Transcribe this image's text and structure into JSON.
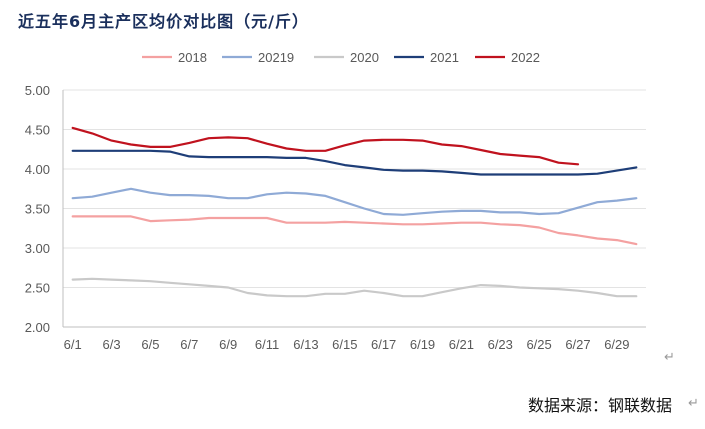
{
  "page": {
    "title": "近五年6月主产区均价对比图（元/斤）",
    "source": "数据来源：钢联数据",
    "return_mark": "↵"
  },
  "chart_data": {
    "type": "line",
    "title": "近五年6月主产区均价对比图（元/斤）",
    "xlabel": "",
    "ylabel": "",
    "ylim": [
      2.0,
      5.0
    ],
    "yticks": [
      2.0,
      2.5,
      3.0,
      3.5,
      4.0,
      4.5,
      5.0
    ],
    "ytick_labels": [
      "2.00",
      "2.50",
      "3.00",
      "3.50",
      "4.00",
      "4.50",
      "5.00"
    ],
    "x": [
      1,
      2,
      3,
      4,
      5,
      6,
      7,
      8,
      9,
      10,
      11,
      12,
      13,
      14,
      15,
      16,
      17,
      18,
      19,
      20,
      21,
      22,
      23,
      24,
      25,
      26,
      27,
      28,
      29,
      30
    ],
    "xtick_values": [
      1,
      3,
      5,
      7,
      9,
      11,
      13,
      15,
      17,
      19,
      21,
      23,
      25,
      27,
      29
    ],
    "xtick_labels": [
      "6/1",
      "6/3",
      "6/5",
      "6/7",
      "6/9",
      "6/11",
      "6/13",
      "6/15",
      "6/17",
      "6/19",
      "6/21",
      "6/23",
      "6/25",
      "6/27",
      "6/29"
    ],
    "grid": "horizontal",
    "legend_position": "top",
    "series": [
      {
        "name": "2018",
        "color": "#f4a1a1",
        "values": [
          3.4,
          3.4,
          3.4,
          3.4,
          3.34,
          3.35,
          3.36,
          3.38,
          3.38,
          3.38,
          3.38,
          3.32,
          3.32,
          3.32,
          3.33,
          3.32,
          3.31,
          3.3,
          3.3,
          3.31,
          3.32,
          3.32,
          3.3,
          3.29,
          3.26,
          3.19,
          3.16,
          3.12,
          3.1,
          3.05
        ]
      },
      {
        "name": "20219",
        "color": "#8faad6",
        "values": [
          3.63,
          3.65,
          3.7,
          3.75,
          3.7,
          3.67,
          3.67,
          3.66,
          3.63,
          3.63,
          3.68,
          3.7,
          3.69,
          3.66,
          3.58,
          3.5,
          3.43,
          3.42,
          3.44,
          3.46,
          3.47,
          3.47,
          3.45,
          3.45,
          3.43,
          3.44,
          3.51,
          3.58,
          3.6,
          3.63
        ]
      },
      {
        "name": "2020",
        "color": "#c9c9c9",
        "values": [
          2.6,
          2.61,
          2.6,
          2.59,
          2.58,
          2.56,
          2.54,
          2.52,
          2.5,
          2.43,
          2.4,
          2.39,
          2.39,
          2.42,
          2.42,
          2.46,
          2.43,
          2.39,
          2.39,
          2.44,
          2.49,
          2.53,
          2.52,
          2.5,
          2.49,
          2.48,
          2.46,
          2.43,
          2.39,
          2.39
        ]
      },
      {
        "name": "2021",
        "color": "#1e3e78",
        "values": [
          4.23,
          4.23,
          4.23,
          4.23,
          4.23,
          4.22,
          4.16,
          4.15,
          4.15,
          4.15,
          4.15,
          4.14,
          4.14,
          4.1,
          4.05,
          4.02,
          3.99,
          3.98,
          3.98,
          3.97,
          3.95,
          3.93,
          3.93,
          3.93,
          3.93,
          3.93,
          3.93,
          3.94,
          3.98,
          4.02
        ]
      },
      {
        "name": "2022",
        "color": "#c0121e",
        "values": [
          4.52,
          4.45,
          4.36,
          4.31,
          4.28,
          4.28,
          4.33,
          4.39,
          4.4,
          4.39,
          4.32,
          4.26,
          4.23,
          4.23,
          4.3,
          4.36,
          4.37,
          4.37,
          4.36,
          4.31,
          4.29,
          4.24,
          4.19,
          4.17,
          4.15,
          4.08,
          4.06,
          null,
          null,
          null
        ]
      }
    ]
  }
}
